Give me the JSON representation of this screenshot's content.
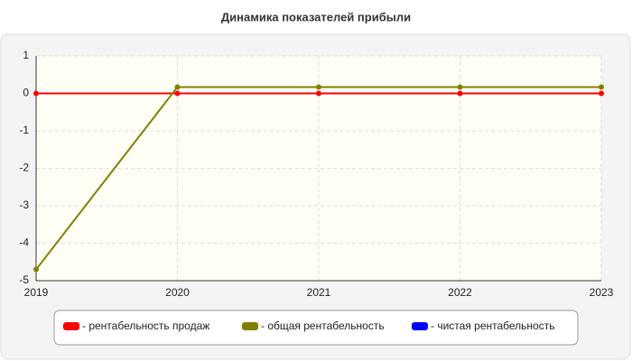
{
  "chart_data": {
    "type": "line",
    "title": "Динамика показателей прибыли",
    "categories": [
      "2019",
      "2020",
      "2021",
      "2022",
      "2023"
    ],
    "series": [
      {
        "name": "- рентабельность продаж",
        "color": "#ff0000",
        "values": [
          0,
          0,
          0,
          0,
          0
        ]
      },
      {
        "name": "- общая рентабельность",
        "color": "#808000",
        "values": [
          -4.7,
          0.17,
          0.17,
          0.17,
          0.17
        ]
      },
      {
        "name": "- чистая рентабельность",
        "color": "#0000ff",
        "values": [
          null,
          null,
          null,
          null,
          null
        ]
      }
    ],
    "ylim": [
      -5,
      1
    ],
    "yticks": [
      -5,
      -4,
      -3,
      -2,
      -1,
      0,
      1
    ],
    "grid": true
  }
}
